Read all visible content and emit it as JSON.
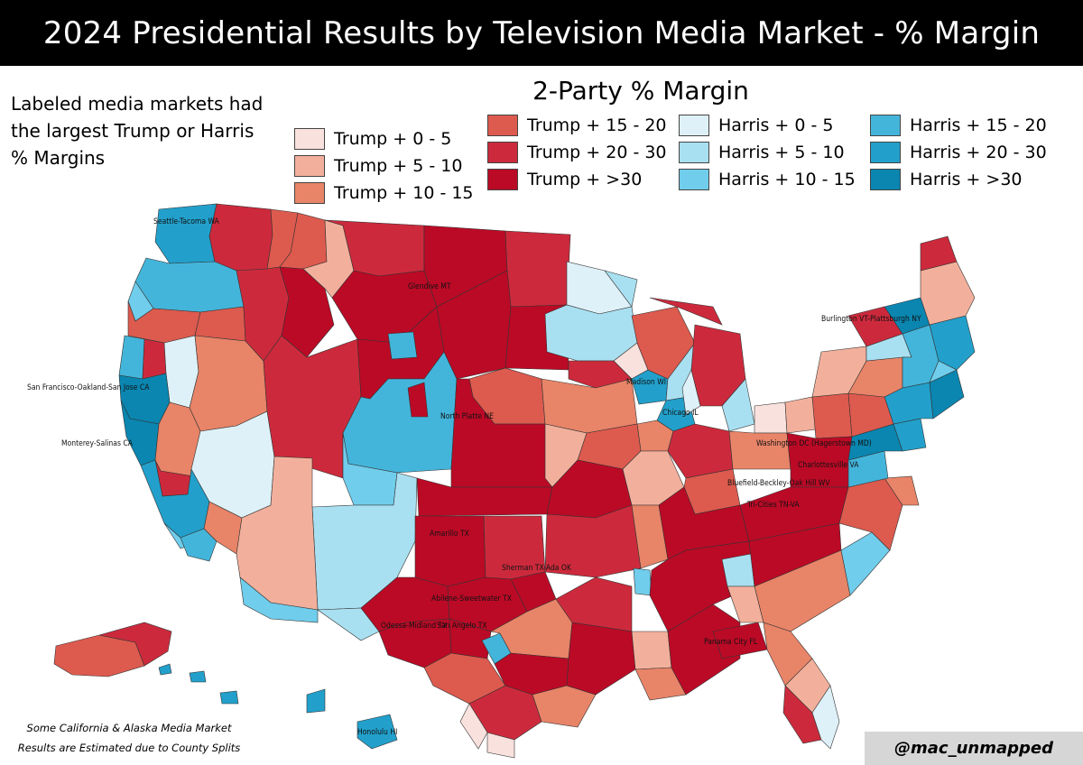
{
  "title": "2024 Presidential Results by Television Media Market - % Margin",
  "side_note": "Labeled media markets had the largest Trump or Harris % Margins",
  "legend": {
    "title": "2-Party % Margin",
    "items": [
      {
        "key": "t0",
        "label": "Trump + 0 - 5",
        "color": "#f9e1dd"
      },
      {
        "key": "t5",
        "label": "Trump + 5 - 10",
        "color": "#f2b09c"
      },
      {
        "key": "t10",
        "label": "Trump + 10 - 15",
        "color": "#e88468"
      },
      {
        "key": "t15",
        "label": "Trump + 15 - 20",
        "color": "#dd5a4e"
      },
      {
        "key": "t20",
        "label": "Trump + 20 - 30",
        "color": "#cc2a3c"
      },
      {
        "key": "t30",
        "label": "Trump + >30",
        "color": "#bb0a26"
      },
      {
        "key": "h0",
        "label": "Harris + 0 - 5",
        "color": "#dff1f8"
      },
      {
        "key": "h5",
        "label": "Harris + 5 - 10",
        "color": "#a9e0f1"
      },
      {
        "key": "h10",
        "label": "Harris + 10 - 15",
        "color": "#70cdeb"
      },
      {
        "key": "h15",
        "label": "Harris + 15 - 20",
        "color": "#44b5da"
      },
      {
        "key": "h20",
        "label": "Harris + 20 - 30",
        "color": "#22a0cb"
      },
      {
        "key": "h30",
        "label": "Harris + >30",
        "color": "#0a86b0"
      }
    ]
  },
  "markets": [
    {
      "name": "Seattle-Tacoma WA",
      "bin": "h30"
    },
    {
      "name": "Glendive MT",
      "bin": "t30"
    },
    {
      "name": "Burlington VT-Plattsburgh NY",
      "bin": "h30"
    },
    {
      "name": "San Francisco-Oakland-San Jose CA",
      "bin": "h30"
    },
    {
      "name": "Madison WI",
      "bin": "h20"
    },
    {
      "name": "North Platte NE",
      "bin": "t30"
    },
    {
      "name": "Chicago IL",
      "bin": "h20"
    },
    {
      "name": "Monterey-Salinas CA",
      "bin": "h30"
    },
    {
      "name": "Washington DC (Hagerstown MD)",
      "bin": "h30"
    },
    {
      "name": "Charlottesville VA",
      "bin": "h15"
    },
    {
      "name": "Bluefield-Beckley-Oak Hill WV",
      "bin": "t30"
    },
    {
      "name": "Tri-Cities TN-VA",
      "bin": "t30"
    },
    {
      "name": "Amarillo TX",
      "bin": "t30"
    },
    {
      "name": "Sherman TX-Ada OK",
      "bin": "t30"
    },
    {
      "name": "Abilene-Sweetwater TX",
      "bin": "t30"
    },
    {
      "name": "Odessa-Midland TX",
      "bin": "t30"
    },
    {
      "name": "San Angelo TX",
      "bin": "t30"
    },
    {
      "name": "Panama City FL",
      "bin": "t30"
    },
    {
      "name": "Honolulu HI",
      "bin": "h20"
    }
  ],
  "footnote": "Some California & Alaska Media Market Results are Estimated due to County Splits",
  "credit": "@mac_unmapped"
}
